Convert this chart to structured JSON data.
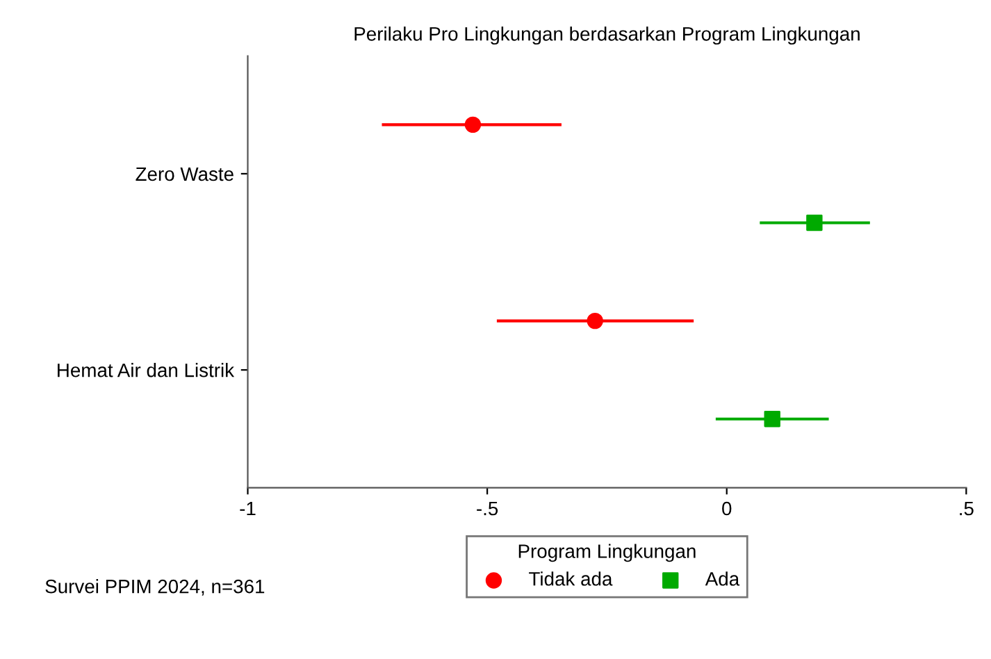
{
  "chart_data": {
    "type": "scatter",
    "orientation": "horizontal",
    "title": "Perilaku Pro Lingkungan berdasarkan Program Lingkungan",
    "categories": [
      "Zero Waste",
      "Hemat Air dan Listrik"
    ],
    "series": [
      {
        "name": "Tidak ada",
        "color": "#ff0000",
        "marker": "circle",
        "values": [
          -0.53,
          -0.275
        ],
        "errors": [
          [
            -0.72,
            -0.345
          ],
          [
            -0.48,
            -0.069
          ]
        ]
      },
      {
        "name": "Ada",
        "color": "#00aa00",
        "marker": "square",
        "values": [
          0.183,
          0.095
        ],
        "errors": [
          [
            0.069,
            0.299
          ],
          [
            -0.023,
            0.213
          ]
        ]
      }
    ],
    "xlim": [
      -1,
      0.5
    ],
    "xticks": [
      -1,
      {
        "value": -0.5,
        "label": "-.5"
      },
      0,
      {
        "value": 0.5,
        "label": ".5"
      }
    ],
    "legend": "bottom",
    "legend_title": "Program Lingkungan",
    "grid": false,
    "annotations": [
      "Survei PPIM 2024, n=361"
    ]
  }
}
